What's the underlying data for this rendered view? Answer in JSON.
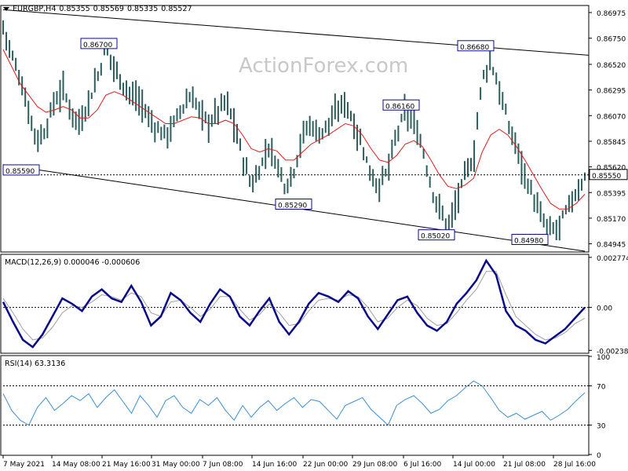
{
  "watermark": "ActionForex.com",
  "colors": {
    "background": "#ffffff",
    "price_bar": "#2e5d5e",
    "moving_average": "#e31a1c",
    "macd_line": "#0a0a8c",
    "macd_signal": "#a0a0a0",
    "rsi_line": "#3b8fd0",
    "label_box_border": "#0a0a8c"
  },
  "chart_data": [
    {
      "type": "ohlc",
      "title": "EURGBP,H4",
      "header_values": [
        "0.85355",
        "0.85569",
        "0.85335",
        "0.85527"
      ],
      "ylim": [
        0.8488,
        0.8703
      ],
      "y_ticks": [
        "0.86975",
        "0.86750",
        "0.86520",
        "0.86295",
        "0.86070",
        "0.85845",
        "0.85620",
        "0.85395",
        "0.85170",
        "0.84945"
      ],
      "x_ticks": [
        "7 May 2021",
        "14 May 08:00",
        "21 May 16:00",
        "31 May 00:00",
        "7 Jun 08:00",
        "14 Jun 16:00",
        "22 Jun 00:00",
        "29 Jun 08:00",
        "6 Jul 16:00",
        "14 Jul 00:00",
        "21 Jul 08:00",
        "28 Jul 16:00"
      ],
      "key_levels": [
        {
          "label": "0.86700",
          "value": 0.867
        },
        {
          "label": "0.86680",
          "value": 0.8668
        },
        {
          "label": "0.86160",
          "value": 0.8616
        },
        {
          "label": "0.85590",
          "value": 0.8559
        },
        {
          "label": "0.85290",
          "value": 0.8529
        },
        {
          "label": "0.85020",
          "value": 0.8502
        },
        {
          "label": "0.84980",
          "value": 0.8498
        }
      ],
      "current_price_label": "0.85550",
      "current_price": 0.8555,
      "closes": [
        0.8685,
        0.866,
        0.864,
        0.861,
        0.8585,
        0.8595,
        0.862,
        0.863,
        0.861,
        0.86,
        0.862,
        0.864,
        0.8665,
        0.865,
        0.8635,
        0.8625,
        0.862,
        0.8605,
        0.8595,
        0.859,
        0.86,
        0.8615,
        0.8625,
        0.861,
        0.86,
        0.861,
        0.862,
        0.86,
        0.857,
        0.8545,
        0.856,
        0.858,
        0.8565,
        0.8545,
        0.856,
        0.859,
        0.86,
        0.859,
        0.86,
        0.861,
        0.862,
        0.86,
        0.858,
        0.8555,
        0.8545,
        0.856,
        0.859,
        0.861,
        0.86,
        0.858,
        0.8545,
        0.8525,
        0.851,
        0.853,
        0.8555,
        0.857,
        0.864,
        0.8655,
        0.863,
        0.86,
        0.858,
        0.8555,
        0.8535,
        0.8515,
        0.8505,
        0.851,
        0.8525,
        0.854,
        0.8553
      ],
      "moving_average": [
        0.8665,
        0.865,
        0.8635,
        0.8625,
        0.8615,
        0.861,
        0.8612,
        0.8615,
        0.8612,
        0.8605,
        0.8605,
        0.8612,
        0.8625,
        0.8628,
        0.8625,
        0.862,
        0.8615,
        0.861,
        0.8605,
        0.86,
        0.86,
        0.8603,
        0.8606,
        0.8605,
        0.86,
        0.86,
        0.8603,
        0.86,
        0.859,
        0.8578,
        0.8575,
        0.8578,
        0.8576,
        0.8568,
        0.8568,
        0.8575,
        0.8582,
        0.8586,
        0.859,
        0.8595,
        0.86,
        0.8598,
        0.859,
        0.8578,
        0.8568,
        0.8566,
        0.8572,
        0.8582,
        0.8585,
        0.858,
        0.8568,
        0.8555,
        0.8545,
        0.8543,
        0.8546,
        0.8552,
        0.8575,
        0.859,
        0.8595,
        0.859,
        0.858,
        0.8568,
        0.8555,
        0.8542,
        0.853,
        0.8525,
        0.8525,
        0.853,
        0.8538
      ]
    },
    {
      "type": "line",
      "title": "MACD(12,26,9) 0.000046 -0.000606",
      "ylim": [
        -0.0025,
        0.0029
      ],
      "y_ticks": [
        "0.002774",
        "0.00",
        "-0.002383"
      ],
      "series": [
        {
          "values": [
            0.0003,
            -0.0008,
            -0.0018,
            -0.0022,
            -0.0015,
            -0.0005,
            0.0005,
            0.0002,
            -0.0002,
            0.0006,
            0.001,
            0.0005,
            0.0003,
            0.0012,
            0.0003,
            -0.001,
            -0.0005,
            0.0008,
            0.0004,
            -0.0003,
            -0.0008,
            0.0002,
            0.001,
            0.0006,
            -0.0005,
            -0.001,
            -0.0002,
            0.0005,
            -0.0008,
            -0.0015,
            -0.0008,
            0.0002,
            0.0008,
            0.0006,
            0.0003,
            0.0009,
            0.0005,
            -0.0005,
            -0.0012,
            -0.0004,
            0.0004,
            0.0006,
            -0.0003,
            -0.001,
            -0.0013,
            -0.0008,
            0.0002,
            0.0008,
            0.0015,
            0.0026,
            0.0018,
            -0.0002,
            -0.001,
            -0.0013,
            -0.0018,
            -0.002,
            -0.0016,
            -0.0012,
            -0.0006,
            0.0
          ]
        },
        {
          "values": [
            0.0005,
            -0.0003,
            -0.0012,
            -0.0018,
            -0.0017,
            -0.0011,
            -0.0003,
            0.0001,
            0.0,
            0.0003,
            0.0007,
            0.0006,
            0.0004,
            0.0008,
            0.0006,
            -0.0003,
            -0.0005,
            0.0003,
            0.0004,
            0.0,
            -0.0005,
            -0.0001,
            0.0006,
            0.0006,
            -0.0001,
            -0.0007,
            -0.0004,
            0.0002,
            -0.0003,
            -0.001,
            -0.0009,
            -0.0002,
            0.0004,
            0.0005,
            0.0004,
            0.0007,
            0.0006,
            0.0,
            -0.0008,
            -0.0006,
            0.0,
            0.0004,
            0.0001,
            -0.0006,
            -0.001,
            -0.0009,
            -0.0003,
            0.0004,
            0.001,
            0.002,
            0.002,
            0.0007,
            -0.0005,
            -0.001,
            -0.0015,
            -0.0018,
            -0.0017,
            -0.0014,
            -0.0009,
            -0.0006
          ]
        }
      ]
    },
    {
      "type": "line",
      "title": "RSI(14) 63.3136",
      "ylim": [
        0,
        100
      ],
      "y_ticks": [
        "100",
        "70",
        "30",
        "0"
      ],
      "levels": [
        70,
        30
      ],
      "series": [
        {
          "values": [
            62,
            45,
            35,
            30,
            48,
            58,
            45,
            52,
            60,
            55,
            62,
            48,
            58,
            66,
            54,
            42,
            60,
            50,
            38,
            55,
            60,
            48,
            42,
            56,
            50,
            58,
            45,
            35,
            50,
            38,
            48,
            55,
            45,
            52,
            58,
            48,
            56,
            54,
            45,
            36,
            50,
            54,
            58,
            46,
            38,
            30,
            50,
            56,
            60,
            52,
            42,
            46,
            55,
            60,
            68,
            75,
            70,
            58,
            45,
            38,
            42,
            36,
            40,
            44,
            35,
            40,
            46,
            55,
            63
          ]
        }
      ]
    }
  ]
}
